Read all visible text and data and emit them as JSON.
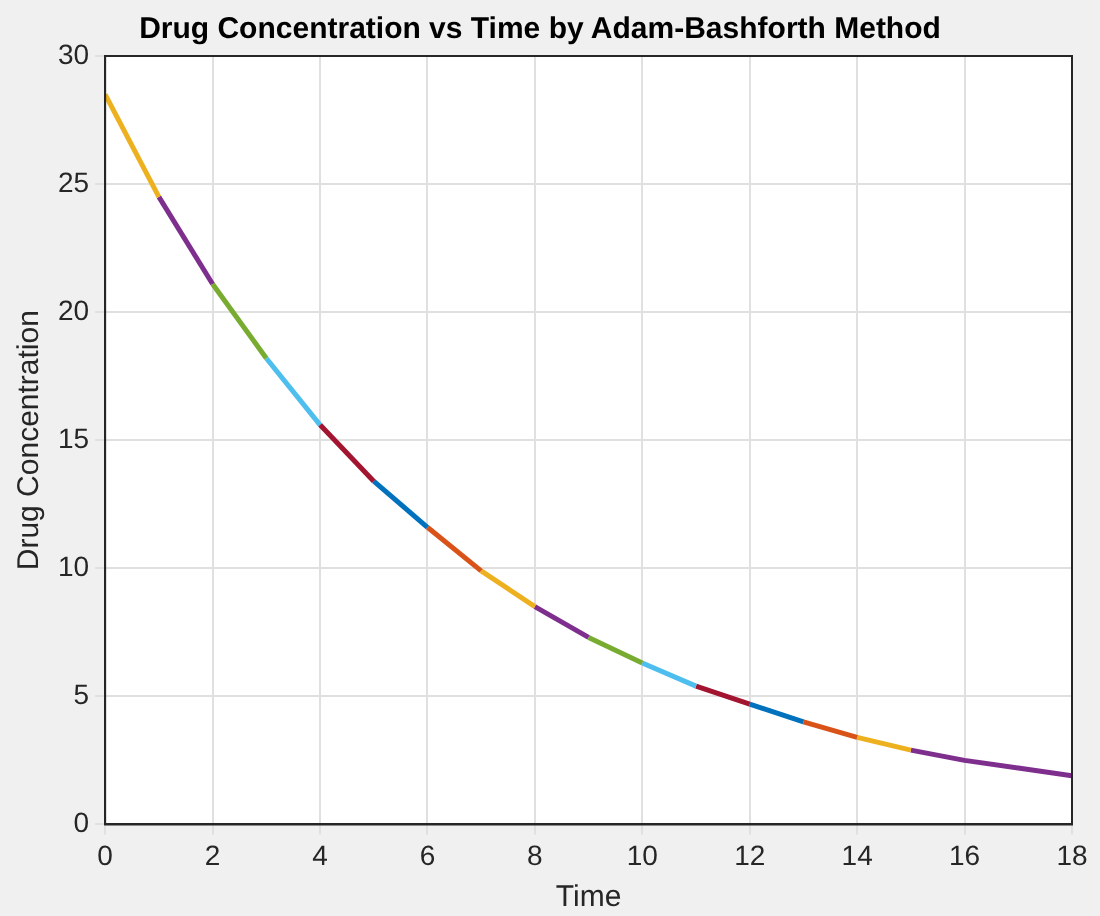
{
  "chart_data": {
    "type": "line",
    "title": "Drug Concentration vs Time by Adam-Bashforth Method",
    "xlabel": "Time",
    "ylabel": "Drug Concentration",
    "xlim": [
      0,
      18
    ],
    "xticks": [
      0,
      2,
      4,
      6,
      8,
      10,
      12,
      14,
      16,
      18
    ],
    "ylim": [
      0,
      30
    ],
    "yticks": [
      0,
      5,
      10,
      15,
      20,
      25,
      30
    ],
    "grid": true,
    "legend": false,
    "marker": "none",
    "line_style": "solid",
    "series": [
      {
        "color": "#edb120",
        "x": [
          0,
          1
        ],
        "values": [
          28.5,
          24.5
        ]
      },
      {
        "color": "#7e2f8e",
        "x": [
          1,
          2
        ],
        "values": [
          24.5,
          21.1
        ]
      },
      {
        "color": "#77ac30",
        "x": [
          2,
          3
        ],
        "values": [
          21.1,
          18.2
        ]
      },
      {
        "color": "#4dbeee",
        "x": [
          3,
          4
        ],
        "values": [
          18.2,
          15.6
        ]
      },
      {
        "color": "#a2142f",
        "x": [
          4,
          5
        ],
        "values": [
          15.6,
          13.4
        ]
      },
      {
        "color": "#0072bd",
        "x": [
          5,
          6
        ],
        "values": [
          13.4,
          11.6
        ]
      },
      {
        "color": "#d95319",
        "x": [
          6,
          7
        ],
        "values": [
          11.6,
          9.9
        ]
      },
      {
        "color": "#edb120",
        "x": [
          7,
          8
        ],
        "values": [
          9.9,
          8.5
        ]
      },
      {
        "color": "#7e2f8e",
        "x": [
          8,
          9
        ],
        "values": [
          8.5,
          7.3
        ]
      },
      {
        "color": "#77ac30",
        "x": [
          9,
          10
        ],
        "values": [
          7.3,
          6.3
        ]
      },
      {
        "color": "#4dbeee",
        "x": [
          10,
          11
        ],
        "values": [
          6.3,
          5.4
        ]
      },
      {
        "color": "#a2142f",
        "x": [
          11,
          12
        ],
        "values": [
          5.4,
          4.7
        ]
      },
      {
        "color": "#0072bd",
        "x": [
          12,
          13
        ],
        "values": [
          4.7,
          4.0
        ]
      },
      {
        "color": "#d95319",
        "x": [
          13,
          14
        ],
        "values": [
          4.0,
          3.4
        ]
      },
      {
        "color": "#edb120",
        "x": [
          14,
          15
        ],
        "values": [
          3.4,
          2.9
        ]
      },
      {
        "color": "#7e2f8e",
        "x": [
          15,
          16,
          17,
          18
        ],
        "values": [
          2.9,
          2.5,
          2.2,
          1.9
        ]
      }
    ]
  }
}
